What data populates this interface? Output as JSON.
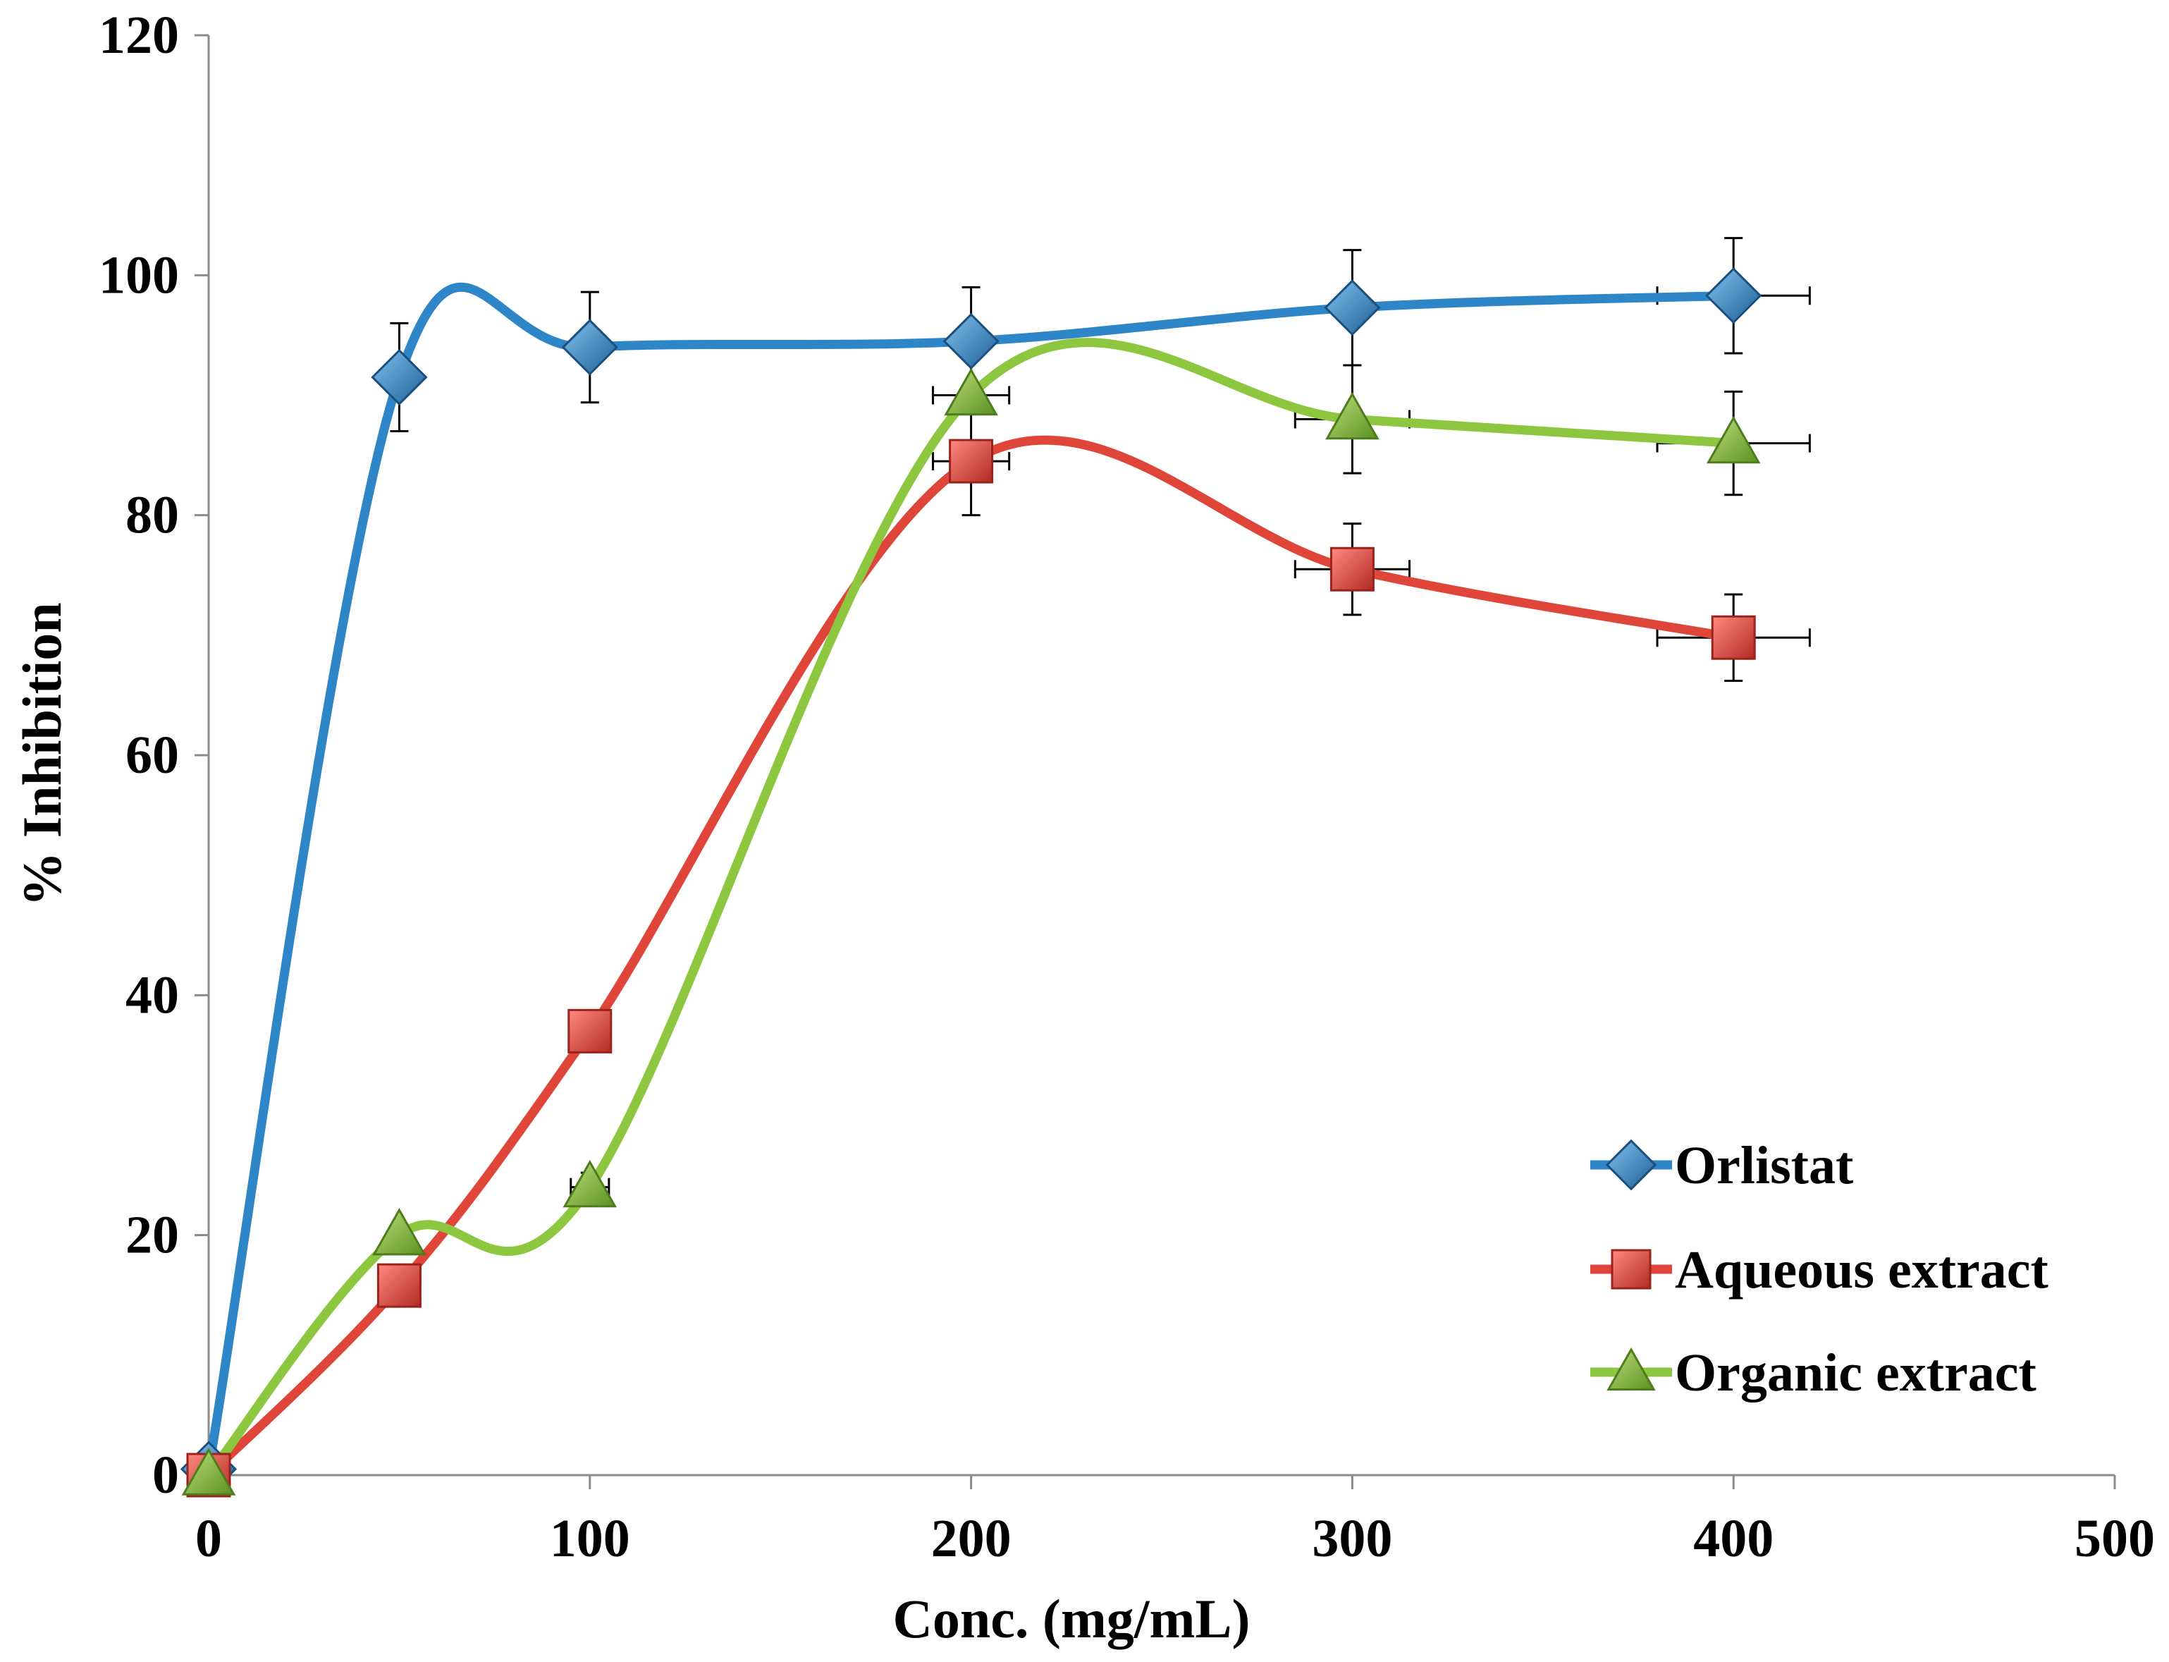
{
  "chart_data": {
    "type": "line",
    "title": "",
    "xlabel": "Conc. (mg/mL)",
    "ylabel": "% Inhibition",
    "xlim": [
      0,
      500
    ],
    "ylim": [
      0,
      120
    ],
    "xticks": [
      0,
      100,
      200,
      300,
      400,
      500
    ],
    "yticks": [
      0,
      20,
      40,
      60,
      80,
      100,
      120
    ],
    "grid": false,
    "legend_position": "bottom-right",
    "smooth": true,
    "series": [
      {
        "name": "Orlistat",
        "color": "#2E86C8",
        "marker": "diamond",
        "x": [
          0,
          50,
          100,
          200,
          300,
          400
        ],
        "values": [
          0.5,
          91.5,
          94,
          94.5,
          97.3,
          98.3
        ],
        "y_error": [
          0,
          4.5,
          4.6,
          4.5,
          4.8,
          4.8
        ],
        "x_error": [
          0,
          0,
          0,
          0,
          0,
          20
        ]
      },
      {
        "name": "Aqueous extract",
        "color": "#E0453A",
        "marker": "square",
        "x": [
          0,
          50,
          100,
          200,
          300,
          400
        ],
        "values": [
          0,
          15.8,
          37,
          84.5,
          75.5,
          69.8
        ],
        "y_error": [
          0,
          0,
          1.5,
          4.5,
          3.8,
          3.6
        ],
        "x_error": [
          0,
          0,
          0,
          10,
          15,
          20
        ]
      },
      {
        "name": "Organic extract",
        "color": "#8DC63F",
        "marker": "triangle",
        "x": [
          0,
          50,
          100,
          200,
          300,
          400
        ],
        "values": [
          0,
          20,
          24,
          90,
          88,
          86
        ],
        "y_error": [
          0,
          0,
          1.2,
          0,
          4.5,
          4.3
        ],
        "x_error": [
          0,
          0,
          5,
          10,
          15,
          20
        ]
      }
    ]
  }
}
